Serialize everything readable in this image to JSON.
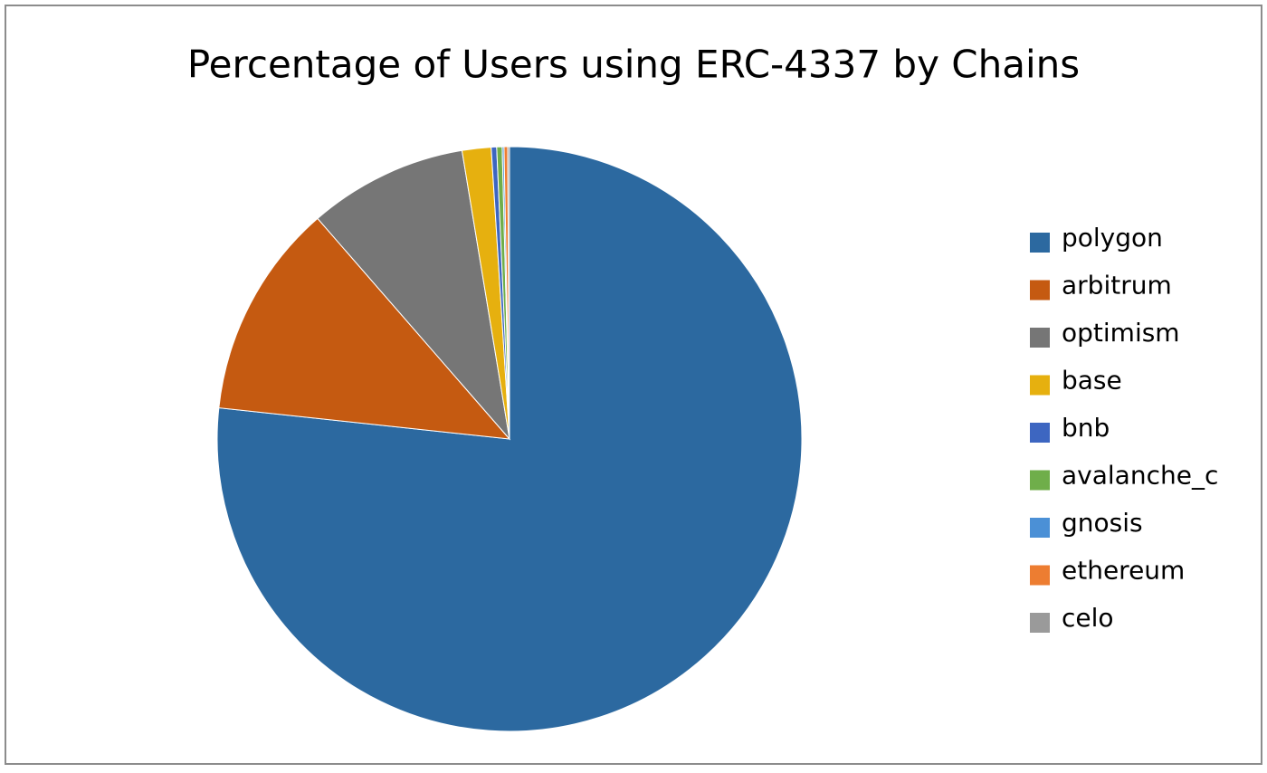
{
  "chart_data": {
    "type": "pie",
    "title": "Percentage of Users using ERC-4337 by Chains",
    "categories": [
      "polygon",
      "arbitrum",
      "optimism",
      "base",
      "bnb",
      "avalanche_c",
      "gnosis",
      "ethereum",
      "celo"
    ],
    "values": [
      76.7,
      11.9,
      8.8,
      1.6,
      0.3,
      0.3,
      0.1,
      0.2,
      0.1
    ],
    "colors": [
      "#2c69a0",
      "#c55a11",
      "#767676",
      "#e6b00f",
      "#3d66c1",
      "#6fae4a",
      "#4b90d6",
      "#ed7d31",
      "#9a9a9a"
    ],
    "legend": "right"
  }
}
